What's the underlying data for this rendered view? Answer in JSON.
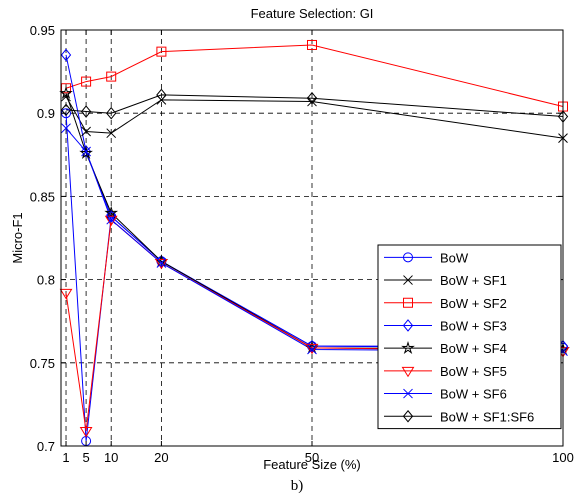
{
  "chart_data": {
    "type": "line",
    "title": "Feature Selection: GI",
    "xlabel": "Feature Size (%)",
    "ylabel": "Micro-F1",
    "caption": "b)",
    "x": [
      1,
      5,
      10,
      20,
      50,
      100
    ],
    "xticks": [
      1,
      5,
      10,
      20,
      50,
      100
    ],
    "xtick_labels": [
      "1",
      "5",
      "10",
      "20",
      "50",
      "100"
    ],
    "xlim": [
      0,
      100
    ],
    "ylim": [
      0.7,
      0.95
    ],
    "yticks": [
      0.7,
      0.75,
      0.8,
      0.85,
      0.9,
      0.95
    ],
    "ytick_labels": [
      "0.7",
      "0.75",
      "0.8",
      "0.85",
      "0.9",
      "0.95"
    ],
    "grid": "dashed",
    "legend_position": "bottom-right",
    "series": [
      {
        "name": "BoW",
        "color": "#0000ff",
        "marker": "circle",
        "values": [
          0.9,
          0.703,
          0.838,
          0.811,
          0.76,
          0.759
        ]
      },
      {
        "name": "BoW + SF1",
        "color": "#000000",
        "marker": "x",
        "values": [
          0.91,
          0.889,
          0.888,
          0.908,
          0.907,
          0.885
        ]
      },
      {
        "name": "BoW + SF2",
        "color": "#ff0000",
        "marker": "square",
        "values": [
          0.915,
          0.919,
          0.922,
          0.937,
          0.941,
          0.904
        ]
      },
      {
        "name": "BoW + SF3",
        "color": "#0000ff",
        "marker": "diamond",
        "values": [
          0.935,
          0.877,
          0.838,
          0.811,
          0.76,
          0.76
        ]
      },
      {
        "name": "BoW + SF4",
        "color": "#000000",
        "marker": "star",
        "values": [
          0.912,
          0.876,
          0.84,
          0.811,
          0.759,
          0.758
        ]
      },
      {
        "name": "BoW + SF5",
        "color": "#ff0000",
        "marker": "triangle-down",
        "values": [
          0.792,
          0.709,
          0.836,
          0.81,
          0.759,
          0.757
        ]
      },
      {
        "name": "BoW + SF6",
        "color": "#0000ff",
        "marker": "x",
        "values": [
          0.891,
          0.877,
          0.836,
          0.81,
          0.758,
          0.757
        ]
      },
      {
        "name": "BoW + SF1:SF6",
        "color": "#000000",
        "marker": "diamond",
        "values": [
          0.902,
          0.901,
          0.9,
          0.911,
          0.909,
          0.898
        ]
      }
    ]
  }
}
